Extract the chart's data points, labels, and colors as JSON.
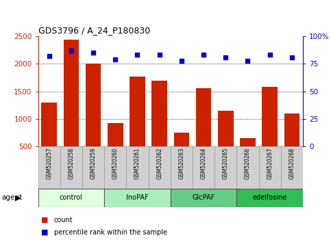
{
  "title": "GDS3796 / A_24_P180830",
  "samples": [
    "GSM520257",
    "GSM520258",
    "GSM520259",
    "GSM520260",
    "GSM520261",
    "GSM520262",
    "GSM520263",
    "GSM520264",
    "GSM520265",
    "GSM520266",
    "GSM520267",
    "GSM520268"
  ],
  "counts": [
    1300,
    2440,
    2000,
    920,
    1770,
    1700,
    750,
    1560,
    1150,
    650,
    1580,
    1100
  ],
  "percentiles": [
    82,
    87,
    85,
    79,
    83,
    83,
    78,
    83,
    81,
    78,
    83,
    81
  ],
  "groups": [
    {
      "label": "control",
      "start": 0,
      "end": 3,
      "color": "#ddffdd"
    },
    {
      "label": "InoPAF",
      "start": 3,
      "end": 6,
      "color": "#aaeebb"
    },
    {
      "label": "GlcPAF",
      "start": 6,
      "end": 9,
      "color": "#66cc88"
    },
    {
      "label": "edelfosine",
      "start": 9,
      "end": 12,
      "color": "#33bb55"
    }
  ],
  "bar_color": "#cc2200",
  "dot_color": "#0000cc",
  "left_ylim": [
    500,
    2500
  ],
  "left_yticks": [
    500,
    1000,
    1500,
    2000,
    2500
  ],
  "right_ylim": [
    0,
    100
  ],
  "right_yticks": [
    0,
    25,
    50,
    75,
    100
  ],
  "right_yticklabels": [
    "0",
    "25",
    "50",
    "75",
    "100%"
  ],
  "left_axis_color": "#cc2200",
  "right_axis_color": "#0000cc",
  "grid_color": "#000000",
  "legend_count_label": "count",
  "legend_pct_label": "percentile rank within the sample",
  "agent_label": "agent"
}
